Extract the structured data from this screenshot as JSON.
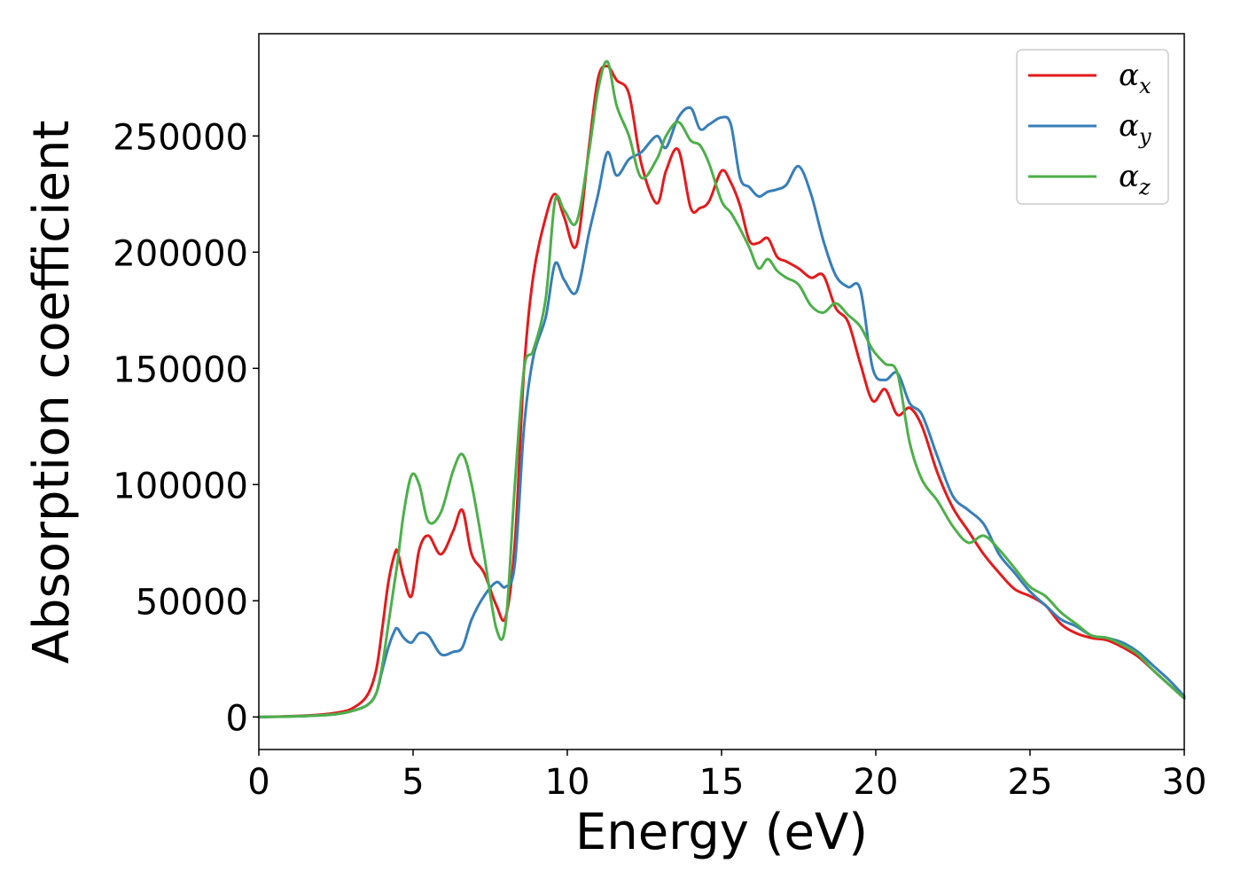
{
  "chart_data": {
    "type": "line",
    "title": "",
    "xlabel": "Energy (eV)",
    "ylabel": "Absorption coefficient",
    "xlim": [
      0,
      30
    ],
    "ylim": [
      -14000,
      294000
    ],
    "xticks": [
      0,
      5,
      10,
      15,
      20,
      25,
      30
    ],
    "yticks": [
      0,
      50000,
      100000,
      150000,
      200000,
      250000
    ],
    "grid": false,
    "legend_position": "top-right",
    "series": [
      {
        "name": "αx",
        "symbol": "α",
        "subscript": "x",
        "color": "#e41a1c",
        "x": [
          0,
          1,
          2,
          2.5,
          3,
          3.5,
          3.8,
          4.0,
          4.2,
          4.4,
          4.5,
          4.7,
          4.95,
          5.2,
          5.5,
          5.9,
          6.3,
          6.6,
          6.9,
          7.3,
          7.7,
          8.0,
          8.3,
          8.6,
          8.9,
          9.3,
          9.6,
          9.9,
          10.3,
          10.7,
          11.0,
          11.3,
          11.6,
          12.0,
          12.4,
          12.9,
          13.2,
          13.6,
          14.0,
          14.3,
          14.6,
          15.0,
          15.3,
          15.6,
          15.9,
          16.2,
          16.5,
          16.8,
          17.1,
          17.5,
          17.9,
          18.3,
          18.7,
          19.1,
          19.5,
          19.9,
          20.3,
          20.7,
          21.1,
          21.5,
          22.0,
          22.5,
          23.0,
          23.5,
          24.0,
          24.5,
          25.0,
          25.5,
          26.0,
          26.5,
          27.0,
          27.5,
          28.0,
          28.5,
          29.0,
          29.5,
          30.0
        ],
        "values": [
          0,
          300,
          1000,
          1800,
          3500,
          9000,
          20000,
          38000,
          58000,
          70000,
          71000,
          60000,
          52000,
          72000,
          78000,
          70000,
          80000,
          89000,
          70000,
          62000,
          48000,
          43000,
          75000,
          150000,
          190000,
          215000,
          225000,
          215000,
          203000,
          245000,
          275000,
          280000,
          274000,
          268000,
          238000,
          221000,
          235000,
          244000,
          219000,
          219000,
          222000,
          235000,
          230000,
          220000,
          205000,
          204000,
          206000,
          198000,
          196000,
          193000,
          189000,
          190000,
          176000,
          170000,
          152000,
          136000,
          141000,
          130000,
          133000,
          125000,
          105000,
          90000,
          80000,
          70000,
          62000,
          55000,
          52000,
          48000,
          40000,
          36000,
          34000,
          33000,
          30000,
          26000,
          20000,
          14000,
          8000
        ]
      },
      {
        "name": "αy",
        "symbol": "α",
        "subscript": "y",
        "color": "#377eb8",
        "x": [
          0,
          1,
          2,
          2.5,
          3,
          3.5,
          3.8,
          4.0,
          4.2,
          4.4,
          4.5,
          4.7,
          4.95,
          5.2,
          5.5,
          5.9,
          6.3,
          6.6,
          6.9,
          7.3,
          7.7,
          8.0,
          8.3,
          8.6,
          8.9,
          9.3,
          9.6,
          9.9,
          10.3,
          10.7,
          11.0,
          11.3,
          11.6,
          12.0,
          12.4,
          12.9,
          13.2,
          13.6,
          14.0,
          14.3,
          14.6,
          15.0,
          15.3,
          15.6,
          15.9,
          16.2,
          16.5,
          16.8,
          17.1,
          17.5,
          17.9,
          18.3,
          18.7,
          19.1,
          19.5,
          19.9,
          20.3,
          20.7,
          21.1,
          21.5,
          22.0,
          22.5,
          23.0,
          23.5,
          24.0,
          24.5,
          25.0,
          25.5,
          26.0,
          26.5,
          27.0,
          27.5,
          28.0,
          28.5,
          29.0,
          29.5,
          30.0
        ],
        "values": [
          0,
          200,
          700,
          1200,
          2500,
          5000,
          10000,
          20000,
          30000,
          37000,
          38000,
          34000,
          32000,
          36000,
          35000,
          27000,
          28000,
          30000,
          42000,
          52000,
          58000,
          56000,
          66000,
          125000,
          155000,
          172000,
          195000,
          188000,
          183000,
          208000,
          225000,
          243000,
          233000,
          240000,
          243000,
          250000,
          245000,
          258000,
          262000,
          253000,
          255000,
          258000,
          255000,
          232000,
          228000,
          224000,
          226000,
          227000,
          229000,
          237000,
          225000,
          205000,
          190000,
          185000,
          184000,
          150000,
          145000,
          148000,
          135000,
          130000,
          112000,
          95000,
          89000,
          83000,
          70000,
          62000,
          54000,
          48000,
          42000,
          39000,
          35000,
          34000,
          32000,
          28000,
          22000,
          16000,
          9000
        ]
      },
      {
        "name": "αz",
        "symbol": "α",
        "subscript": "z",
        "color": "#4daf4a",
        "x": [
          0,
          1,
          2,
          2.5,
          3,
          3.5,
          3.8,
          4.0,
          4.2,
          4.4,
          4.5,
          4.7,
          4.95,
          5.2,
          5.5,
          5.9,
          6.3,
          6.6,
          6.9,
          7.3,
          7.7,
          8.0,
          8.3,
          8.6,
          8.9,
          9.3,
          9.6,
          9.9,
          10.3,
          10.7,
          11.0,
          11.3,
          11.6,
          12.0,
          12.4,
          12.9,
          13.2,
          13.6,
          14.0,
          14.3,
          14.6,
          15.0,
          15.3,
          15.6,
          15.9,
          16.2,
          16.5,
          16.8,
          17.1,
          17.5,
          17.9,
          18.3,
          18.7,
          19.1,
          19.5,
          19.9,
          20.3,
          20.7,
          21.1,
          21.5,
          22.0,
          22.5,
          23.0,
          23.5,
          24.0,
          24.5,
          25.0,
          25.5,
          26.0,
          26.5,
          27.0,
          27.5,
          28.0,
          28.5,
          29.0,
          29.5,
          30.0
        ],
        "values": [
          0,
          200,
          700,
          1200,
          2500,
          5000,
          10000,
          22000,
          40000,
          58000,
          67000,
          88000,
          104000,
          100000,
          84000,
          88000,
          106000,
          113000,
          100000,
          70000,
          38000,
          40000,
          100000,
          150000,
          158000,
          180000,
          222000,
          218000,
          213000,
          243000,
          270000,
          282000,
          263000,
          250000,
          232000,
          240000,
          250000,
          256000,
          248000,
          246000,
          238000,
          222000,
          217000,
          210000,
          202000,
          193000,
          197000,
          192000,
          189000,
          186000,
          177000,
          174000,
          178000,
          173000,
          168000,
          158000,
          152000,
          148000,
          118000,
          102000,
          93000,
          82000,
          75000,
          78000,
          72000,
          64000,
          56000,
          52000,
          45000,
          40000,
          35000,
          34000,
          31000,
          27000,
          20000,
          14000,
          8000
        ]
      }
    ]
  }
}
